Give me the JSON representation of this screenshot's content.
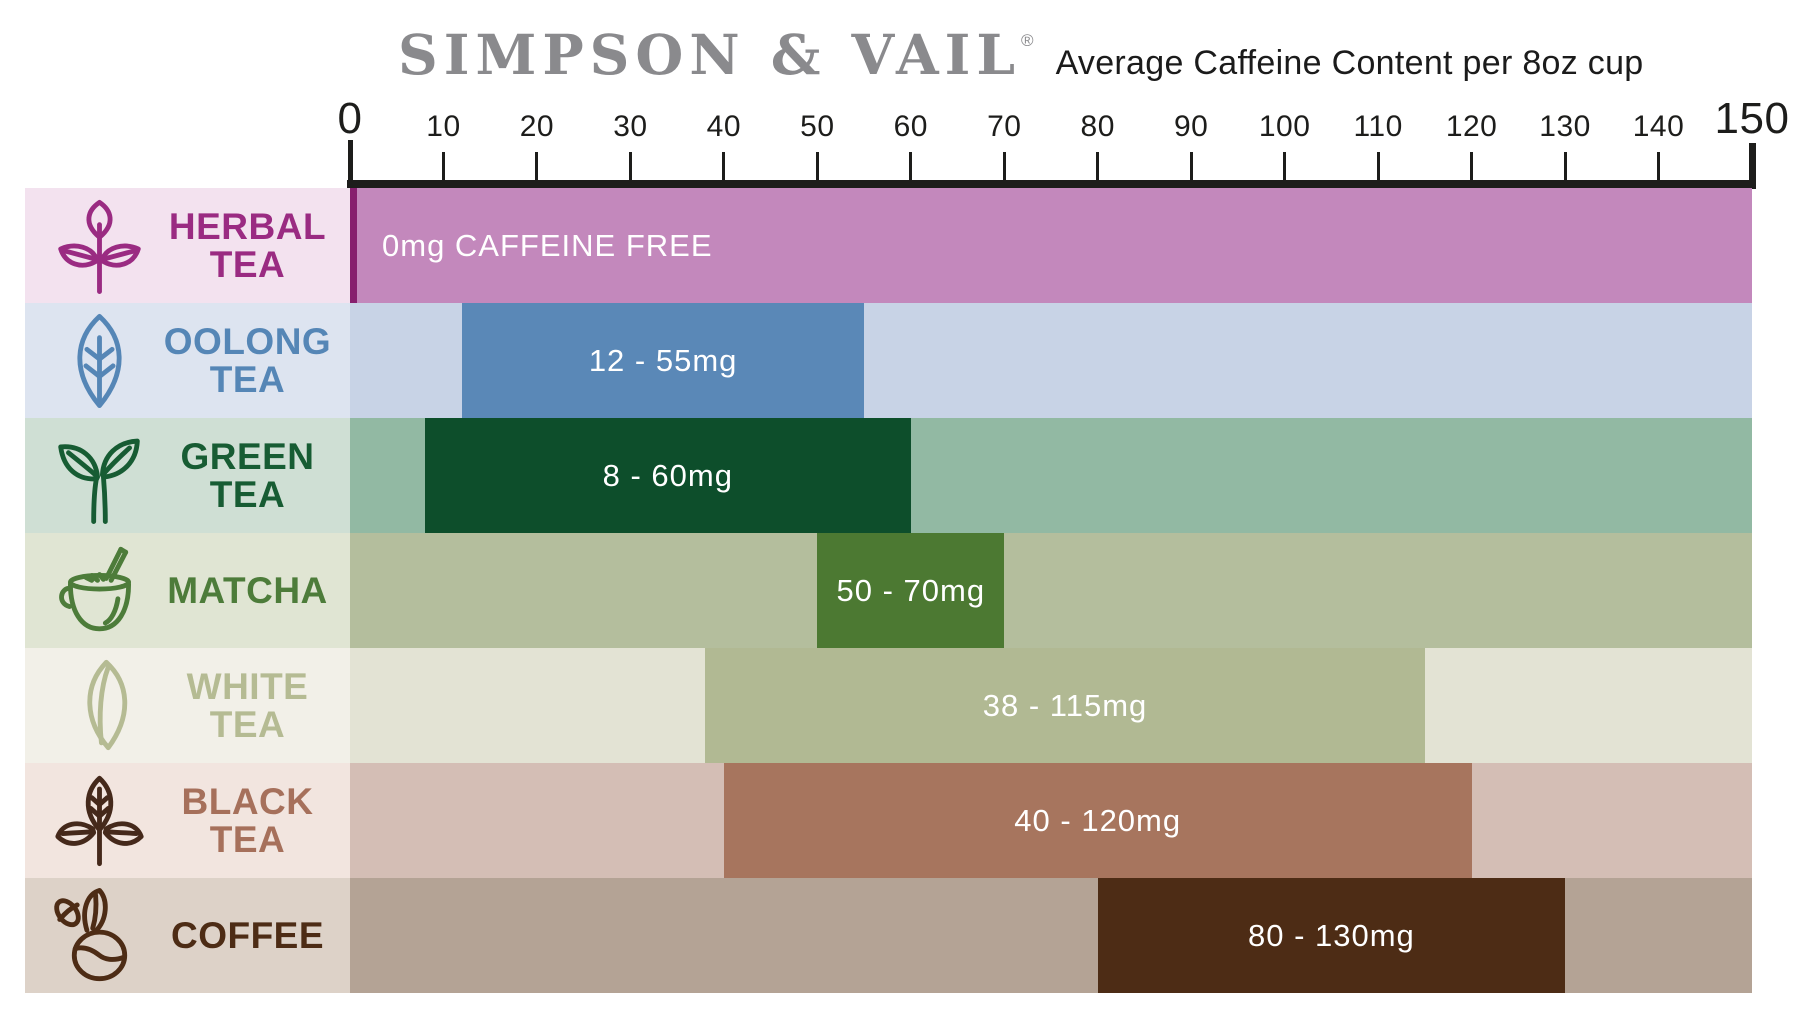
{
  "header": {
    "brand": "SIMPSON & VAIL",
    "registered_mark": "®",
    "title": "Average Caffeine Content per 8oz cup"
  },
  "axis": {
    "unit": "mg",
    "min": 0,
    "max": 150,
    "tick_interval": 10,
    "tick_labels": [
      "0",
      "10",
      "20",
      "30",
      "40",
      "50",
      "60",
      "70",
      "80",
      "90",
      "100",
      "110",
      "120",
      "130",
      "140",
      "150"
    ]
  },
  "chart_data": {
    "type": "bar",
    "orientation": "horizontal",
    "title": "Average Caffeine Content per 8oz cup",
    "x_axis": {
      "min": 0,
      "max": 150,
      "tick_interval": 10,
      "unit": "mg"
    },
    "grid": false,
    "legend": false,
    "categories": [
      "HERBAL TEA",
      "OOLONG TEA",
      "GREEN TEA",
      "MATCHA",
      "WHITE TEA",
      "BLACK TEA",
      "COFFEE"
    ],
    "ranges_mg": [
      [
        0,
        0
      ],
      [
        12,
        55
      ],
      [
        8,
        60
      ],
      [
        50,
        70
      ],
      [
        38,
        115
      ],
      [
        40,
        120
      ],
      [
        80,
        130
      ]
    ],
    "range_labels": [
      "0mg CAFFEINE FREE",
      "12 - 55mg",
      "8 - 60mg",
      "50 - 70mg",
      "38 - 115mg",
      "40 - 120mg",
      "80 - 130mg"
    ],
    "rows": [
      {
        "id": "herbal-tea",
        "label_lines": [
          "HERBAL",
          "TEA"
        ],
        "icon": "herbal-tea-icon",
        "bar_label": "0mg CAFFEINE FREE",
        "bar_label_align": "left",
        "bar_span": [
          0,
          150
        ],
        "caffeine_range_mg": [
          0,
          0
        ],
        "colors": {
          "label_bg": "#f3e2ef",
          "label_text": "#9a2b82",
          "icon": "#9a2b82",
          "track": "#c388bc",
          "bar": "#c388bc",
          "zero_line": "#871f6e"
        }
      },
      {
        "id": "oolong-tea",
        "label_lines": [
          "OOLONG",
          "TEA"
        ],
        "icon": "oolong-tea-icon",
        "bar_label": "12 - 55mg",
        "bar_label_align": "center",
        "bar_span": [
          12,
          55
        ],
        "caffeine_range_mg": [
          12,
          55
        ],
        "colors": {
          "label_bg": "#dde4f0",
          "label_text": "#5586b6",
          "icon": "#5586b6",
          "track": "#c8d3e6",
          "bar": "#5a88b7"
        }
      },
      {
        "id": "green-tea",
        "label_lines": [
          "GREEN",
          "TEA"
        ],
        "icon": "green-tea-icon",
        "bar_label": "8 - 60mg",
        "bar_label_align": "center",
        "bar_span": [
          8,
          60
        ],
        "caffeine_range_mg": [
          8,
          60
        ],
        "colors": {
          "label_bg": "#cfdfd4",
          "label_text": "#175c33",
          "icon": "#175c33",
          "track": "#92b9a3",
          "bar": "#0d4e2b"
        }
      },
      {
        "id": "matcha",
        "label_lines": [
          "MATCHA"
        ],
        "icon": "matcha-icon",
        "bar_label": "50 - 70mg",
        "bar_label_align": "center",
        "bar_span": [
          50,
          70
        ],
        "caffeine_range_mg": [
          50,
          70
        ],
        "colors": {
          "label_bg": "#e0e5d3",
          "label_text": "#4d7c3a",
          "icon": "#4d7c3a",
          "track": "#b4be9d",
          "bar": "#4c7932"
        }
      },
      {
        "id": "white-tea",
        "label_lines": [
          "WHITE",
          "TEA"
        ],
        "icon": "white-tea-icon",
        "bar_label": "38 - 115mg",
        "bar_label_align": "center",
        "bar_span": [
          38,
          115
        ],
        "caffeine_range_mg": [
          38,
          115
        ],
        "colors": {
          "label_bg": "#f2f0e8",
          "label_text": "#b5bb93",
          "icon": "#b5bb93",
          "track": "#e3e3d4",
          "bar": "#b1b993"
        }
      },
      {
        "id": "black-tea",
        "label_lines": [
          "BLACK",
          "TEA"
        ],
        "icon": "black-tea-icon",
        "bar_label": "40 - 120mg",
        "bar_label_align": "center",
        "bar_span": [
          40,
          120
        ],
        "caffeine_range_mg": [
          40,
          120
        ],
        "colors": {
          "label_bg": "#f2e5df",
          "label_text": "#a6705b",
          "icon": "#45291b",
          "track": "#d4beb5",
          "bar": "#a7755e"
        }
      },
      {
        "id": "coffee",
        "label_lines": [
          "COFFEE"
        ],
        "icon": "coffee-icon",
        "bar_label": "80 - 130mg",
        "bar_label_align": "center",
        "bar_span": [
          80,
          130
        ],
        "caffeine_range_mg": [
          80,
          130
        ],
        "colors": {
          "label_bg": "#ddd2c8",
          "label_text": "#4d2c15",
          "icon": "#4d2c15",
          "track": "#b4a395",
          "bar": "#4d2c15"
        }
      }
    ]
  }
}
